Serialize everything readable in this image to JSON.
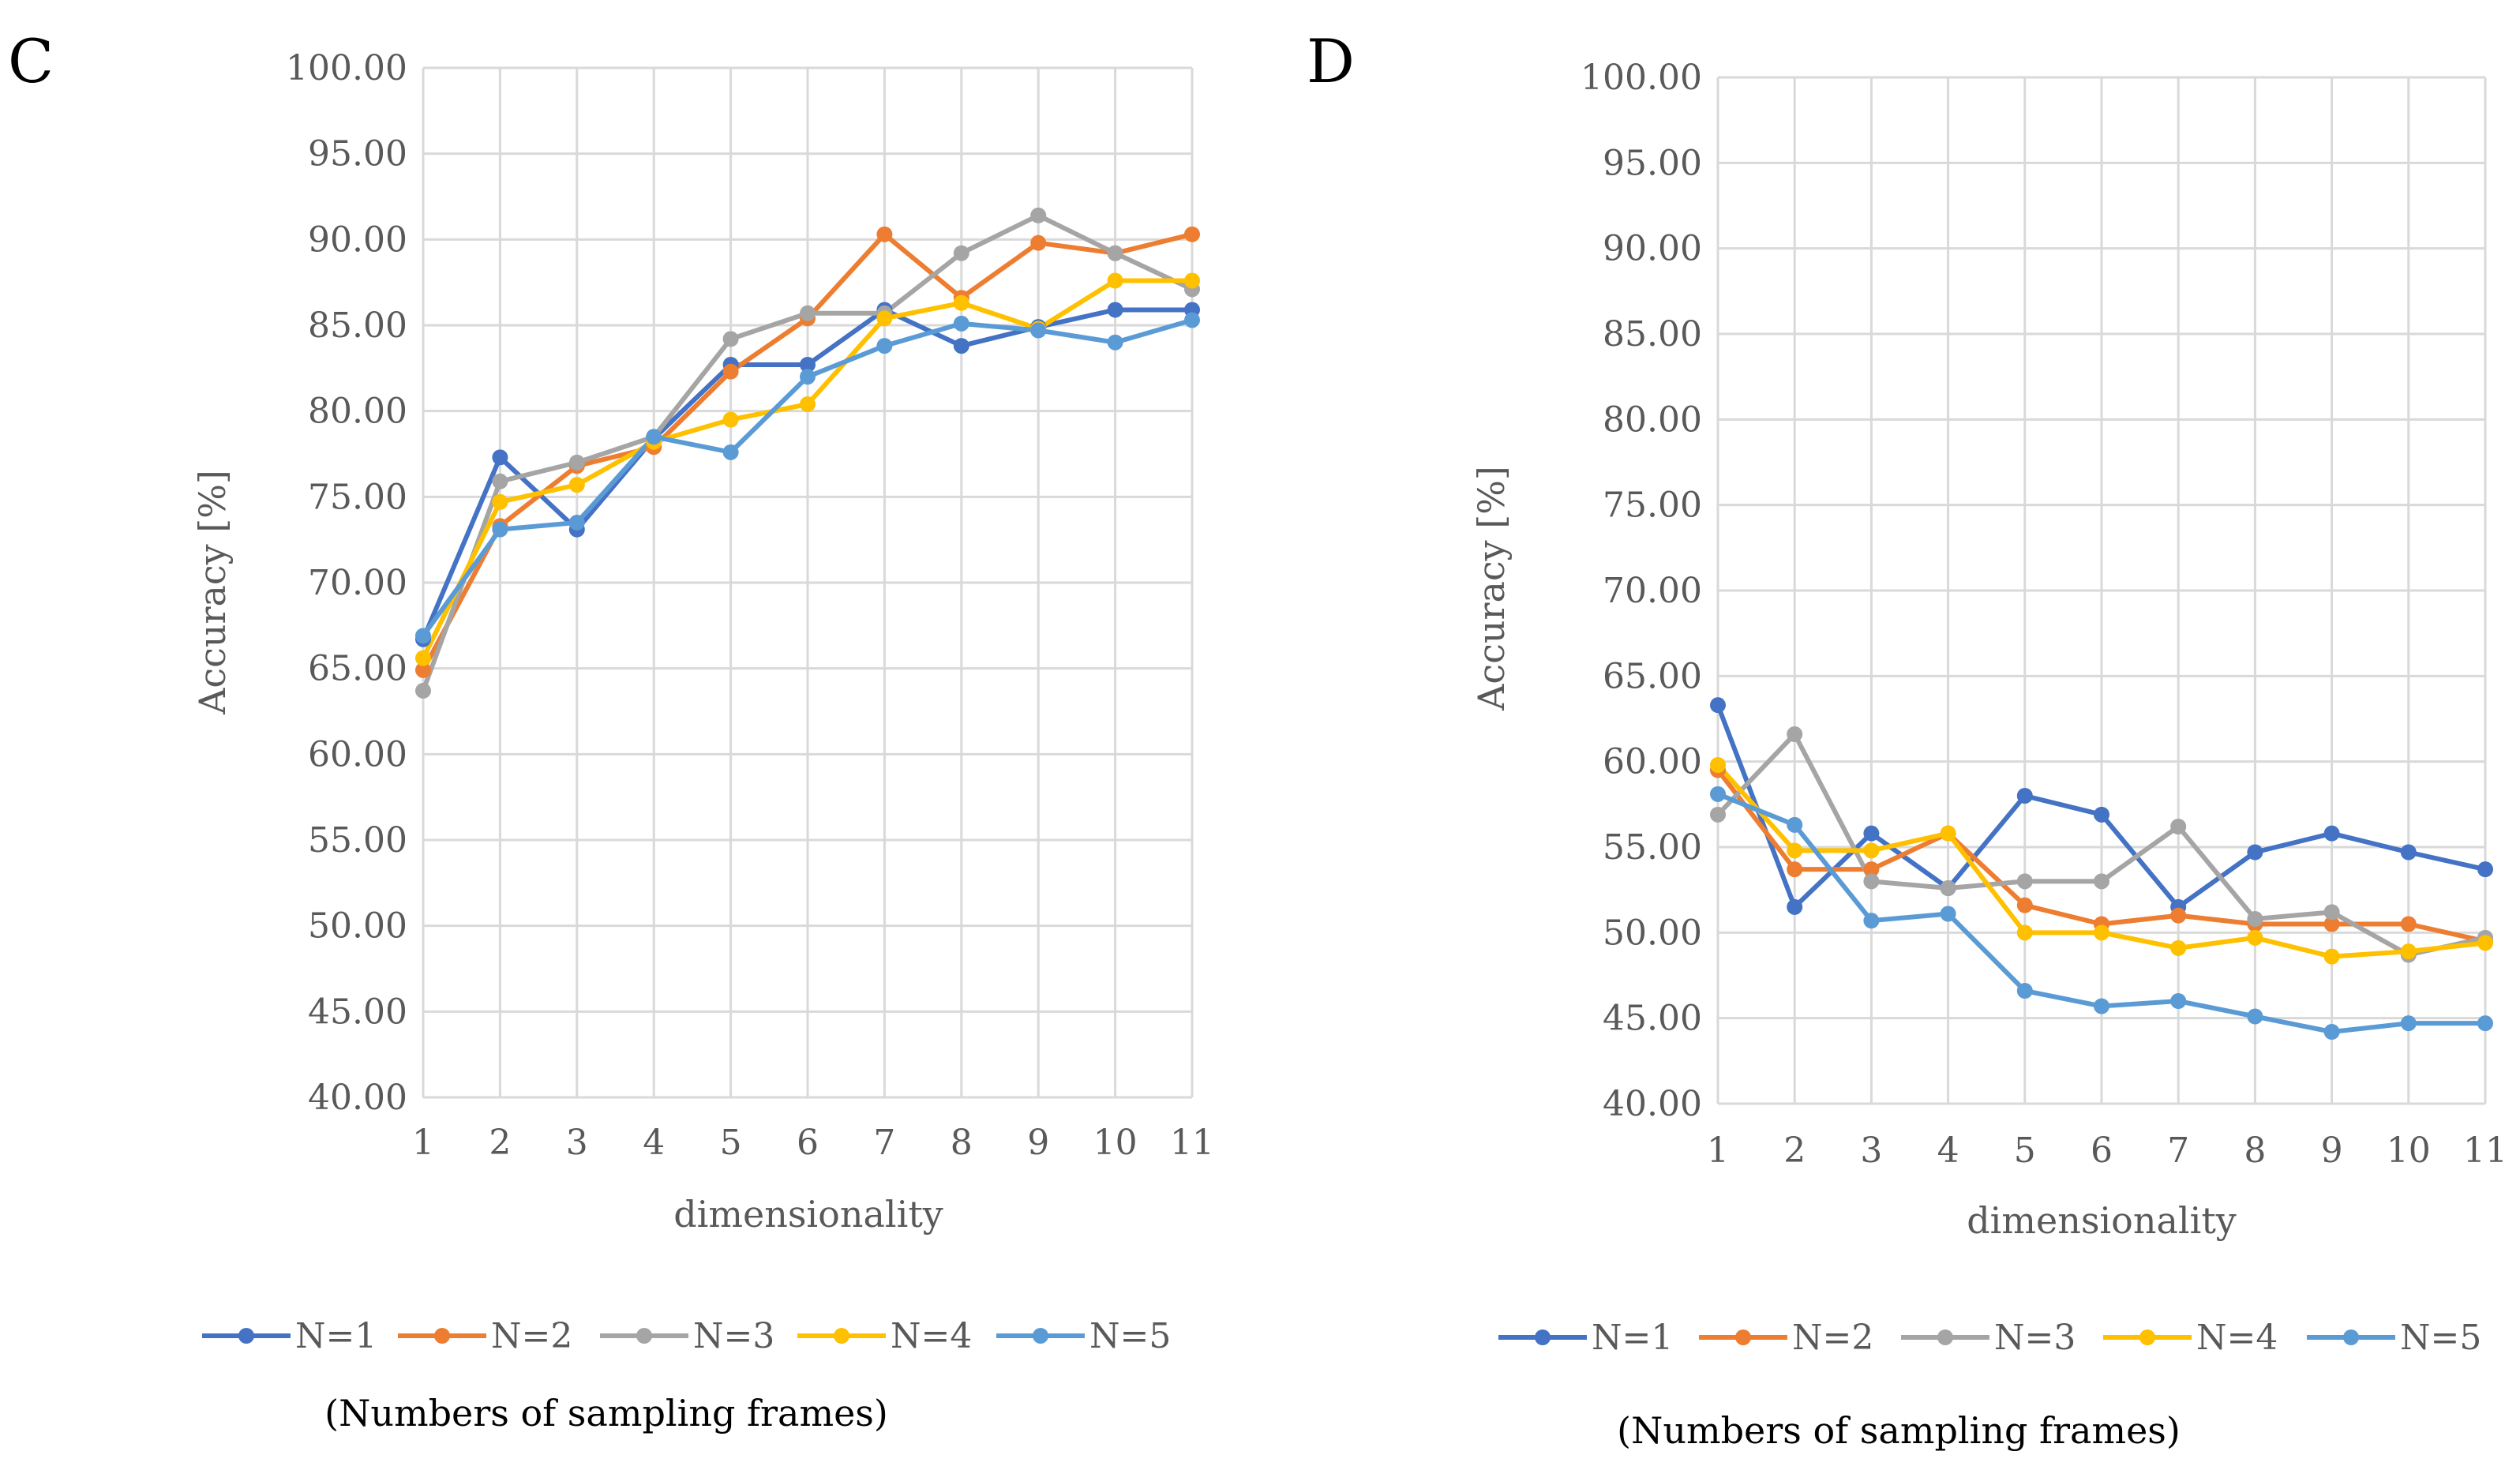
{
  "chart_data": [
    {
      "panel": "C",
      "type": "line",
      "xlabel": "dimensionality",
      "ylabel": "Accuracy [%]",
      "ylim": [
        40,
        100
      ],
      "yticks": [
        "40.00",
        "45.00",
        "50.00",
        "55.00",
        "60.00",
        "65.00",
        "70.00",
        "75.00",
        "80.00",
        "85.00",
        "90.00",
        "95.00",
        "100.00"
      ],
      "categories": [
        "1",
        "2",
        "3",
        "4",
        "5",
        "6",
        "7",
        "8",
        "9",
        "10",
        "11"
      ],
      "series": [
        {
          "name": "N=1",
          "color": "#4472C4",
          "values": [
            66.7,
            77.3,
            73.1,
            78.4,
            82.7,
            82.7,
            85.9,
            83.8,
            84.9,
            85.9,
            85.9
          ]
        },
        {
          "name": "N=2",
          "color": "#ED7D31",
          "values": [
            64.9,
            73.3,
            76.8,
            77.9,
            82.3,
            85.4,
            90.3,
            86.6,
            89.8,
            89.2,
            90.3
          ]
        },
        {
          "name": "N=3",
          "color": "#A5A5A5",
          "values": [
            63.7,
            75.9,
            77.0,
            78.5,
            84.2,
            85.7,
            85.7,
            89.2,
            91.4,
            89.2,
            87.1
          ]
        },
        {
          "name": "N=4",
          "color": "#FFC000",
          "values": [
            65.6,
            74.7,
            75.7,
            78.2,
            79.5,
            80.4,
            85.4,
            86.3,
            84.8,
            87.6,
            87.6
          ]
        },
        {
          "name": "N=5",
          "color": "#5B9BD5",
          "values": [
            66.9,
            73.1,
            73.5,
            78.5,
            77.6,
            82.0,
            83.8,
            85.1,
            84.7,
            84.0,
            85.3
          ]
        }
      ],
      "legend_title": "(Numbers of sampling frames)"
    },
    {
      "panel": "D",
      "type": "line",
      "xlabel": "dimensionality",
      "ylabel": "Accuracy [%]",
      "ylim": [
        40,
        100
      ],
      "yticks": [
        "40.00",
        "45.00",
        "50.00",
        "55.00",
        "60.00",
        "65.00",
        "70.00",
        "75.00",
        "80.00",
        "85.00",
        "90.00",
        "95.00",
        "100.00"
      ],
      "categories": [
        "1",
        "2",
        "3",
        "4",
        "5",
        "6",
        "7",
        "8",
        "9",
        "10",
        "11"
      ],
      "series": [
        {
          "name": "N=1",
          "color": "#4472C4",
          "values": [
            63.3,
            51.5,
            55.8,
            52.6,
            58.0,
            56.9,
            51.5,
            54.7,
            55.8,
            54.7,
            53.7
          ]
        },
        {
          "name": "N=2",
          "color": "#ED7D31",
          "values": [
            59.5,
            53.7,
            53.7,
            55.8,
            51.6,
            50.5,
            51.0,
            50.5,
            50.5,
            50.5,
            49.5
          ]
        },
        {
          "name": "N=3",
          "color": "#A5A5A5",
          "values": [
            56.9,
            61.6,
            53.0,
            52.6,
            53.0,
            53.0,
            56.2,
            50.8,
            51.2,
            48.7,
            49.7
          ]
        },
        {
          "name": "N=4",
          "color": "#FFC000",
          "values": [
            59.8,
            54.8,
            54.8,
            55.8,
            50.0,
            50.0,
            49.1,
            49.7,
            48.6,
            48.9,
            49.4
          ]
        },
        {
          "name": "N=5",
          "color": "#5B9BD5",
          "values": [
            58.1,
            56.3,
            50.7,
            51.1,
            46.6,
            45.7,
            46.0,
            45.1,
            44.2,
            44.7,
            44.7
          ]
        }
      ],
      "legend_title": "(Numbers of sampling frames)"
    }
  ]
}
